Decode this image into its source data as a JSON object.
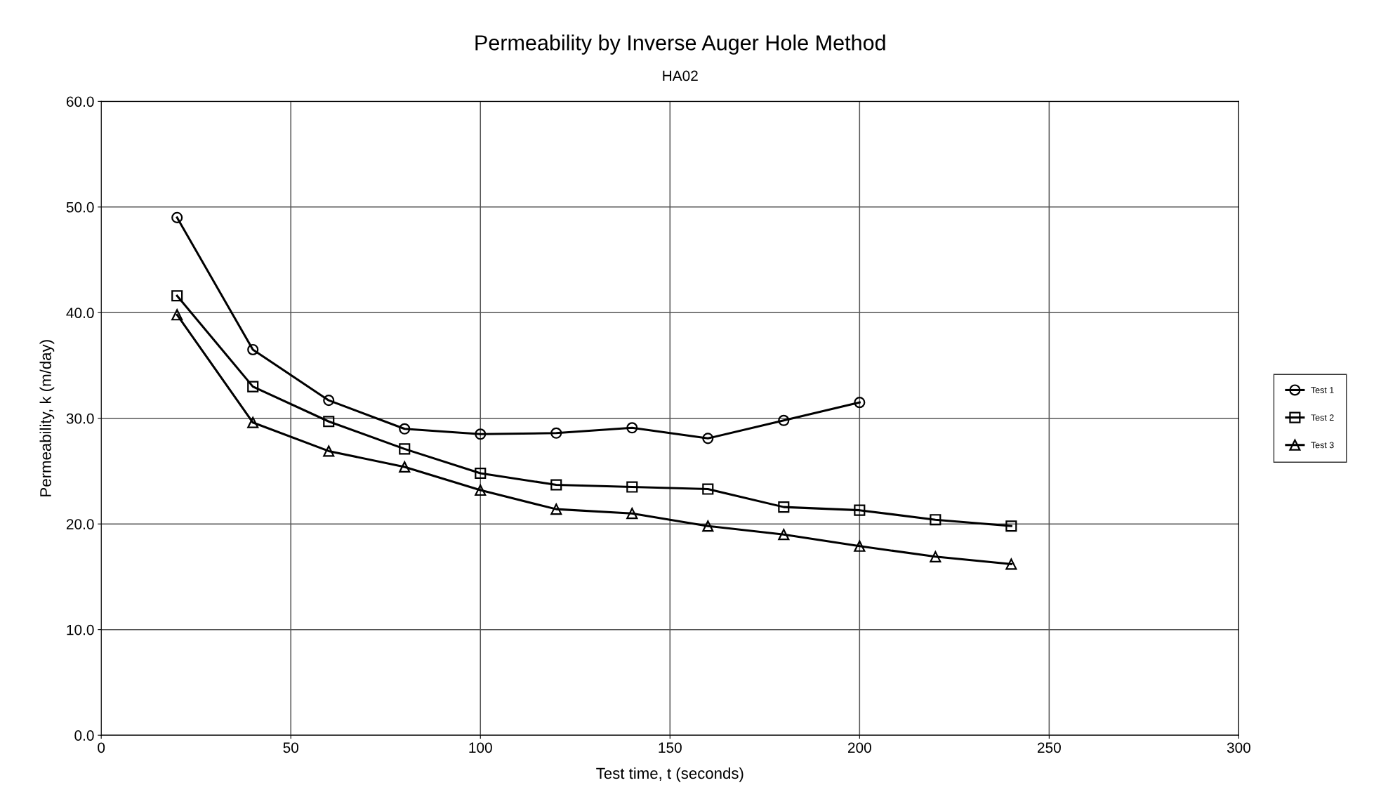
{
  "chart_data": {
    "type": "line",
    "title": "Permeability by Inverse Auger Hole Method",
    "subtitle": "HA02",
    "xlabel": "Test time, t (seconds)",
    "ylabel": "Permeability, k (m/day)",
    "xlim": [
      0,
      300
    ],
    "xticks": [
      0,
      50,
      100,
      150,
      200,
      250,
      300
    ],
    "ylim": [
      0,
      60
    ],
    "yticks": [
      {
        "value": 0,
        "label": "0.0"
      },
      {
        "value": 10,
        "label": "10.0"
      },
      {
        "value": 20,
        "label": "20.0"
      },
      {
        "value": 30,
        "label": "30.0"
      },
      {
        "value": 40,
        "label": "40.0"
      },
      {
        "value": 50,
        "label": "50.0"
      },
      {
        "value": 60,
        "label": "60.0"
      }
    ],
    "grid": true,
    "legend": "right",
    "line_style": "solid",
    "series": [
      {
        "name": "Test 1",
        "color": "#000000",
        "marker": "circle",
        "x": [
          20,
          40,
          60,
          80,
          100,
          120,
          140,
          160,
          180,
          200
        ],
        "values": [
          49.0,
          36.5,
          31.7,
          29.0,
          28.5,
          28.6,
          29.1,
          28.1,
          29.8,
          31.5
        ]
      },
      {
        "name": "Test 2",
        "color": "#000000",
        "marker": "square",
        "x": [
          20,
          40,
          60,
          80,
          100,
          120,
          140,
          160,
          180,
          200,
          220,
          240
        ],
        "values": [
          41.6,
          33.0,
          29.7,
          27.1,
          24.8,
          23.7,
          23.5,
          23.3,
          21.6,
          21.3,
          20.4,
          19.8
        ]
      },
      {
        "name": "Test 3",
        "color": "#000000",
        "marker": "triangle",
        "x": [
          20,
          40,
          60,
          80,
          100,
          120,
          140,
          160,
          180,
          200,
          220,
          240
        ],
        "values": [
          39.8,
          29.6,
          26.9,
          25.4,
          23.2,
          21.4,
          21.0,
          19.8,
          19.0,
          17.9,
          16.9,
          16.2
        ]
      }
    ]
  }
}
